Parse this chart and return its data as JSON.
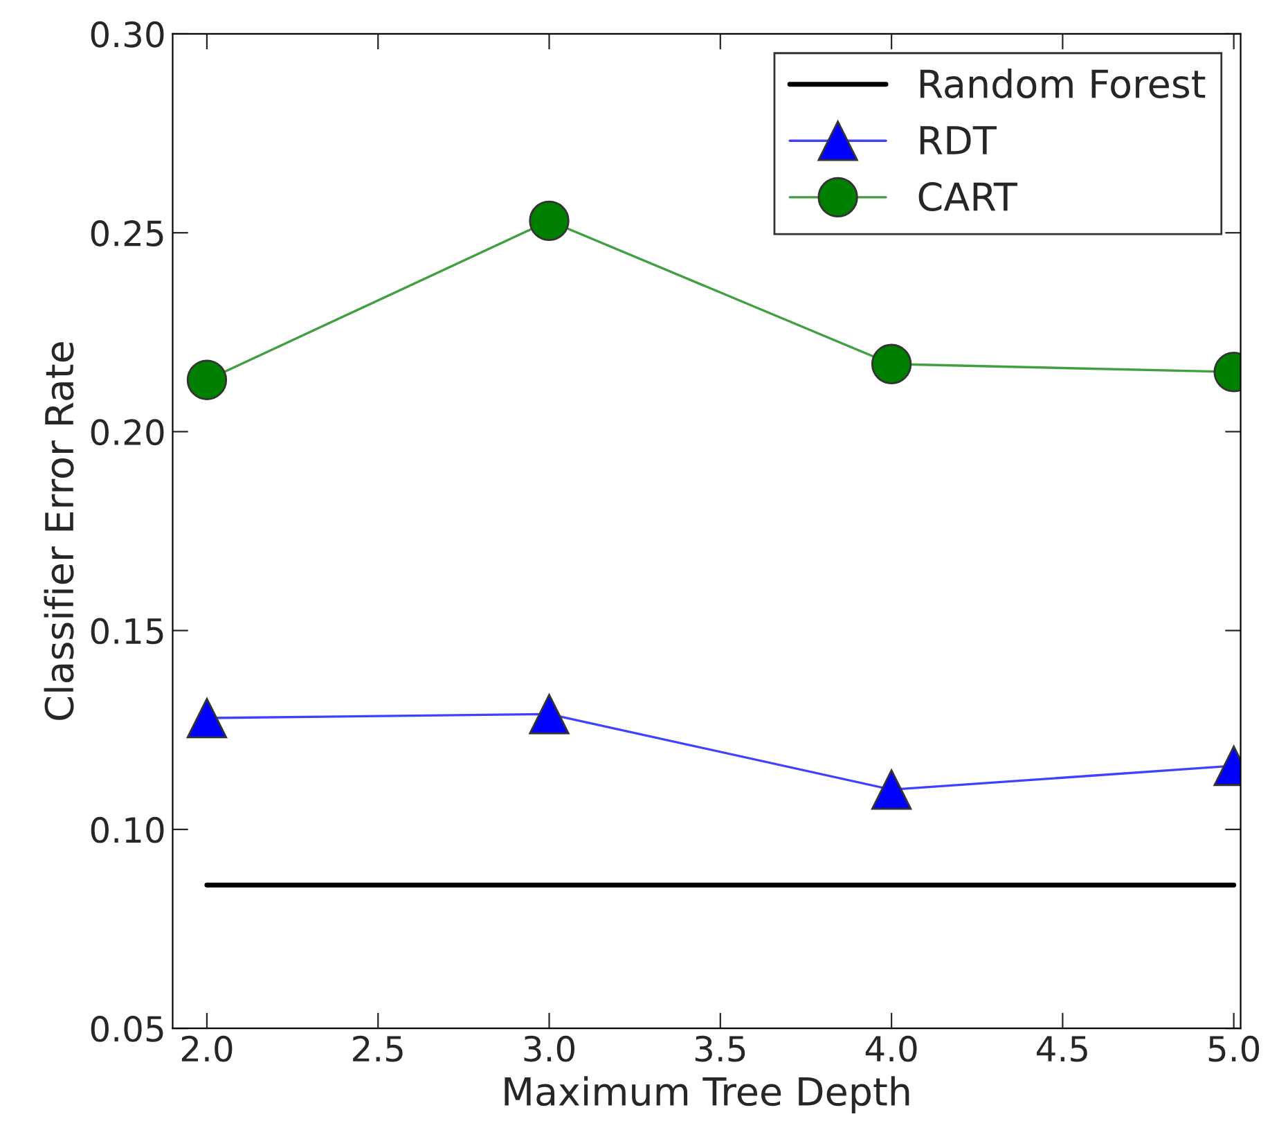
{
  "chart_data": {
    "type": "line",
    "xlabel": "Maximum Tree Depth",
    "ylabel": "Classifier Error Rate",
    "xlim": [
      1.9,
      5.02
    ],
    "xticks": [
      {
        "value": 2.0,
        "label": "2.0"
      },
      2.5,
      {
        "value": 3.0,
        "label": "3.0"
      },
      3.5,
      {
        "value": 4.0,
        "label": "4.0"
      },
      4.5,
      {
        "value": 5.0,
        "label": "5.0"
      }
    ],
    "ylim": [
      0.05,
      0.3
    ],
    "yticks": [
      0.05,
      {
        "value": 0.1,
        "label": "0.10"
      },
      0.15,
      {
        "value": 0.2,
        "label": "0.20"
      },
      0.25,
      {
        "value": 0.3,
        "label": "0.30"
      }
    ],
    "grid": false,
    "legend": "top right",
    "series": [
      {
        "name": "Random Forest",
        "color": "#000000",
        "x": [
          2,
          5
        ],
        "values": [
          0.086,
          0.086
        ],
        "marker": "none"
      },
      {
        "name": "RDT",
        "color": "#0000ff",
        "x": [
          2,
          3,
          4,
          5
        ],
        "values": [
          0.128,
          0.129,
          0.11,
          0.116
        ],
        "marker": "triangle"
      },
      {
        "name": "CART",
        "color": "#008000",
        "x": [
          2,
          3,
          4,
          5
        ],
        "values": [
          0.213,
          0.253,
          0.217,
          0.215
        ],
        "marker": "circle"
      }
    ]
  }
}
